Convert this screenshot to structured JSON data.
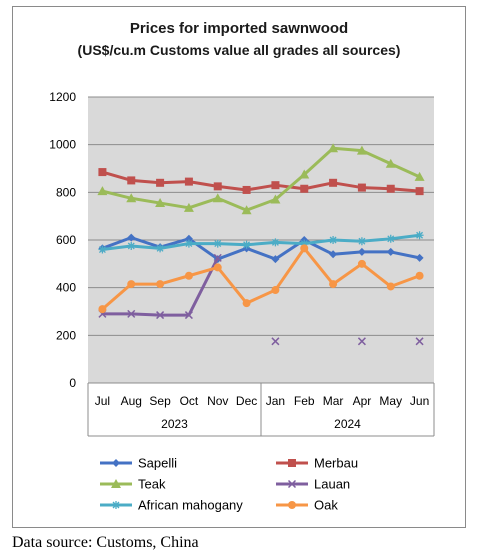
{
  "chart_data": {
    "type": "line",
    "title": "Prices for imported sawnwood",
    "subtitle": "(US$/cu.m Customs value all grades all sources)",
    "categories": [
      "Jul",
      "Aug",
      "Sep",
      "Oct",
      "Nov",
      "Dec",
      "Jan",
      "Feb",
      "Mar",
      "Apr",
      "May",
      "Jun"
    ],
    "year_groups": [
      {
        "label": "2023",
        "span": 6
      },
      {
        "label": "2024",
        "span": 6
      }
    ],
    "ylim": [
      0,
      1200
    ],
    "yticks": [
      0,
      200,
      400,
      600,
      800,
      1000,
      1200
    ],
    "grid": true,
    "legend_position": "bottom",
    "series": [
      {
        "name": "Sapelli",
        "color": "#4472c4",
        "marker": "diamond",
        "values": [
          565,
          610,
          570,
          605,
          520,
          565,
          520,
          600,
          540,
          550,
          550,
          525
        ]
      },
      {
        "name": "Merbau",
        "color": "#c0504d",
        "marker": "square",
        "values": [
          885,
          850,
          840,
          845,
          825,
          810,
          830,
          815,
          840,
          820,
          815,
          805
        ]
      },
      {
        "name": "Teak",
        "color": "#9bbb59",
        "marker": "triangle",
        "values": [
          805,
          775,
          755,
          735,
          775,
          725,
          770,
          875,
          985,
          975,
          920,
          865
        ]
      },
      {
        "name": "Lauan",
        "color": "#7f5f9f",
        "marker": "x",
        "values": [
          290,
          290,
          285,
          285,
          525,
          null,
          175,
          null,
          null,
          175,
          null,
          175
        ]
      },
      {
        "name": "African mahogany",
        "color": "#4bacc6",
        "marker": "star",
        "values": [
          560,
          575,
          565,
          585,
          585,
          580,
          590,
          585,
          600,
          595,
          605,
          620
        ]
      },
      {
        "name": "Oak",
        "color": "#f79646",
        "marker": "circle",
        "values": [
          310,
          415,
          415,
          450,
          485,
          335,
          390,
          565,
          415,
          500,
          405,
          450
        ]
      }
    ]
  },
  "source_note": "Data source: Customs, China"
}
